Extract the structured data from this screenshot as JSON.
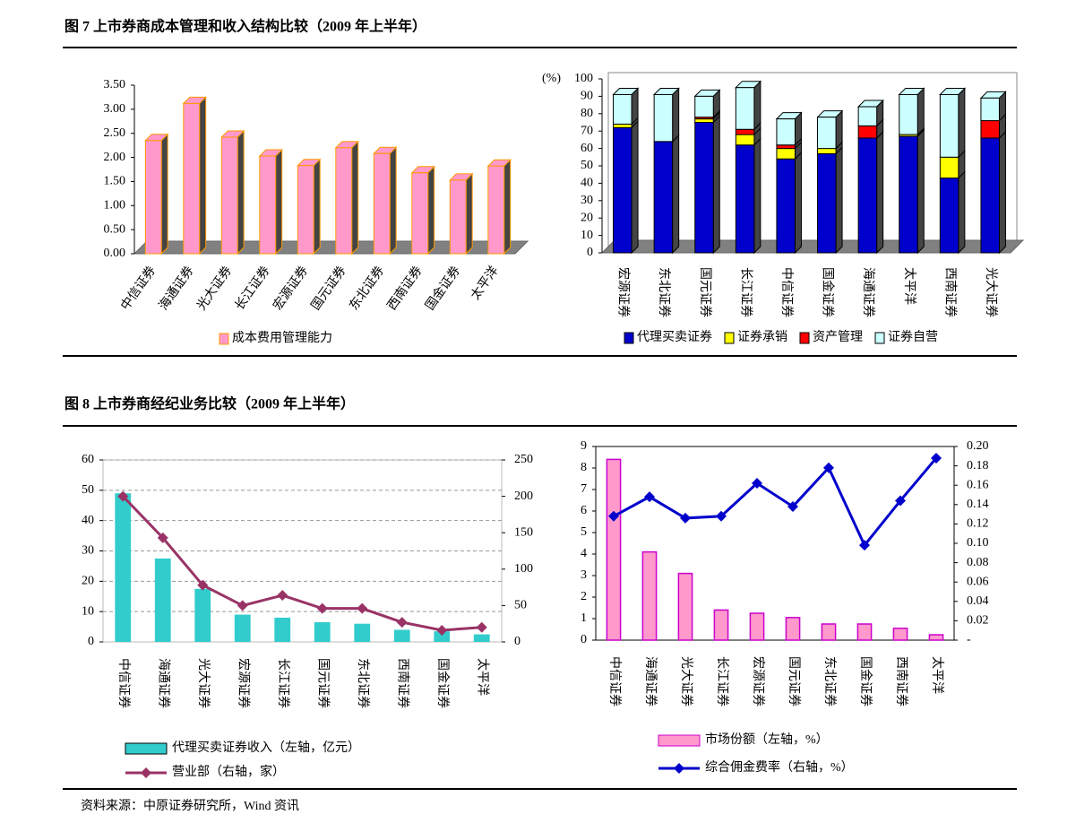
{
  "figure7_title": "图 7 上市券商成本管理和收入结构比较（2009 年上半年）",
  "figure8_title": "图 8 上市券商经纪业务比较（2009 年上半年）",
  "source": "资料来源：中原证券研究所，Wind 资讯",
  "chart_data": [
    {
      "type": "bar3d",
      "categories": [
        "中信证券",
        "海通证券",
        "光大证券",
        "长江证券",
        "宏源证券",
        "国元证券",
        "东北证券",
        "西南证券",
        "国金证券",
        "太平洋"
      ],
      "series": [
        {
          "name": "成本费用管理能力",
          "color": "#ff99cc",
          "values": [
            2.35,
            3.12,
            2.42,
            2.03,
            1.83,
            2.2,
            2.08,
            1.68,
            1.53,
            1.82
          ]
        }
      ],
      "ylim": [
        0,
        3.5
      ],
      "yticks": [
        {
          "value": 0,
          "label": "0.00"
        },
        {
          "value": 0.5,
          "label": "0.50"
        },
        {
          "value": 1,
          "label": "1.00"
        },
        {
          "value": 1.5,
          "label": "1.50"
        },
        {
          "value": 2,
          "label": "2.00"
        },
        {
          "value": 2.5,
          "label": "2.50"
        },
        {
          "value": 3,
          "label": "3.00"
        },
        {
          "value": 3.5,
          "label": "3.50"
        }
      ]
    },
    {
      "type": "stacked_bar3d",
      "y_label": "(%)",
      "categories": [
        "宏源证券",
        "东北证券",
        "国元证券",
        "长江证券",
        "中信证券",
        "国金证券",
        "海通证券",
        "太平洋",
        "西南证券",
        "光大证券"
      ],
      "series": [
        {
          "name": "代理买卖证券",
          "color": "#0000cc",
          "values": [
            72,
            64,
            75,
            62,
            54,
            57,
            66,
            67,
            43,
            66
          ]
        },
        {
          "name": "证券承销",
          "color": "#ffff00",
          "values": [
            2,
            0,
            2,
            6,
            6,
            3,
            0,
            1,
            12,
            0
          ]
        },
        {
          "name": "资产管理",
          "color": "#ff0000",
          "values": [
            0,
            0,
            1,
            3,
            2,
            0,
            7,
            0,
            0,
            10
          ]
        },
        {
          "name": "证券自营",
          "color": "#ccffff",
          "values": [
            17,
            27,
            12,
            24,
            15,
            18,
            11,
            23,
            36,
            13
          ]
        }
      ],
      "ylim": [
        0,
        100
      ],
      "yticks": [
        0,
        10,
        20,
        30,
        40,
        50,
        60,
        70,
        80,
        90,
        100
      ]
    },
    {
      "type": "bar_line",
      "categories": [
        "中信证券",
        "海通证券",
        "光大证券",
        "宏源证券",
        "长江证券",
        "国元证券",
        "东北证券",
        "西南证券",
        "国金证券",
        "太平洋"
      ],
      "series": [
        {
          "name": "代理买卖证券收入（左轴，亿元）",
          "kind": "bar",
          "color": "#33cccc",
          "values": [
            49,
            27.5,
            17.5,
            9,
            8,
            6.5,
            6,
            4,
            3.5,
            2.5
          ]
        },
        {
          "name": "营业部（右轴，家）",
          "kind": "line",
          "axis": "y2",
          "color": "#993366",
          "values": [
            200,
            143,
            78,
            50,
            64,
            46,
            46,
            27,
            16,
            20
          ]
        }
      ],
      "ylim": [
        0,
        60
      ],
      "yticks": [
        0,
        10,
        20,
        30,
        40,
        50,
        60
      ],
      "y2lim": [
        0,
        250
      ],
      "y2ticks": [
        0,
        50,
        100,
        150,
        200,
        250
      ],
      "grid": true
    },
    {
      "type": "bar_line",
      "categories": [
        "中信证券",
        "海通证券",
        "光大证券",
        "长江证券",
        "宏源证券",
        "国元证券",
        "东北证券",
        "国金证券",
        "西南证券",
        "太平洋"
      ],
      "series": [
        {
          "name": "市场份额（左轴，%）",
          "kind": "bar",
          "color": "#ff99cc",
          "values": [
            8.4,
            4.1,
            3.1,
            1.4,
            1.25,
            1.05,
            0.75,
            0.75,
            0.55,
            0.25
          ]
        },
        {
          "name": "综合佣金费率（右轴，%）",
          "kind": "line",
          "axis": "y2",
          "color": "#0000cc",
          "values": [
            0.128,
            0.148,
            0.126,
            0.128,
            0.162,
            0.138,
            0.178,
            0.098,
            0.144,
            0.188
          ]
        }
      ],
      "ylim": [
        0,
        9
      ],
      "yticks": [
        0,
        1,
        2,
        3,
        4,
        5,
        6,
        7,
        8,
        9
      ],
      "y2lim": [
        0,
        0.2
      ],
      "y2ticks": [
        {
          "value": 0,
          "label": "-"
        },
        {
          "value": 0.02,
          "label": "0.02"
        },
        {
          "value": 0.04,
          "label": "0.04"
        },
        {
          "value": 0.06,
          "label": "0.06"
        },
        {
          "value": 0.08,
          "label": "0.08"
        },
        {
          "value": 0.1,
          "label": "0.10"
        },
        {
          "value": 0.12,
          "label": "0.12"
        },
        {
          "value": 0.14,
          "label": "0.14"
        },
        {
          "value": 0.16,
          "label": "0.16"
        },
        {
          "value": 0.18,
          "label": "0.18"
        },
        {
          "value": 0.2,
          "label": "0.20"
        }
      ],
      "grid": false
    }
  ]
}
